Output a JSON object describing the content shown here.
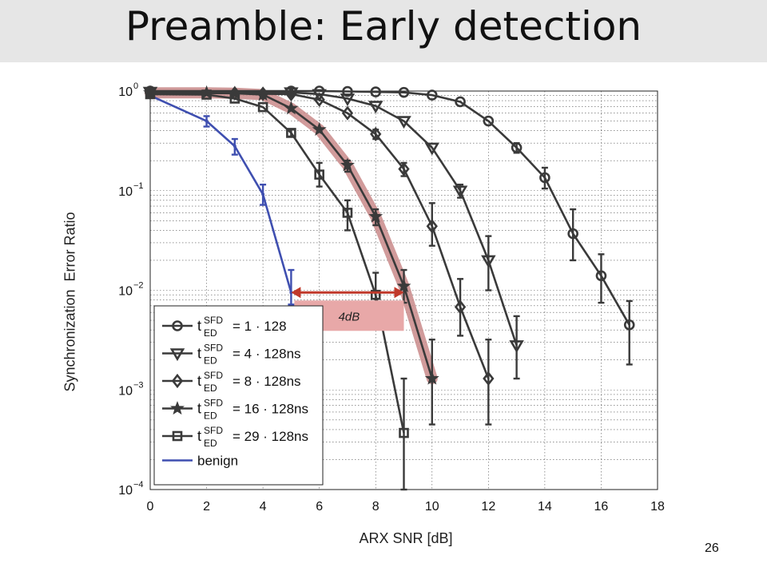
{
  "slide": {
    "title": "Preamble: Early detection",
    "page_number": "26"
  },
  "chart_data": {
    "type": "line",
    "xlabel": "ARX SNR [dB]",
    "ylabel": "Synchronization  Error Ratio",
    "yscale": "log",
    "xlim": [
      0,
      18
    ],
    "ylim": [
      0.0001,
      1
    ],
    "xticks": [
      0,
      2,
      4,
      6,
      8,
      10,
      12,
      14,
      16,
      18
    ],
    "ytick_exponents": [
      "0",
      "−1",
      "−2",
      "−3",
      "−4"
    ],
    "ytick_base": "10",
    "grid": true,
    "legend_placement": "lower-left",
    "series": [
      {
        "name": "benign",
        "marker": "dot",
        "color": "#3f4fb0",
        "x": [
          0,
          2,
          3,
          4,
          5
        ],
        "y": [
          0.9,
          0.5,
          0.28,
          0.092,
          0.0095
        ],
        "err_low": [
          null,
          0.44,
          0.23,
          0.072,
          0.0072
        ],
        "err_high": [
          null,
          0.56,
          0.33,
          0.115,
          0.016
        ]
      },
      {
        "name": "29",
        "marker": "square",
        "color": "#3a3a3a",
        "x": [
          0,
          2,
          3,
          4,
          5,
          6,
          7,
          8,
          9
        ],
        "y": [
          0.93,
          0.92,
          0.84,
          0.69,
          0.38,
          0.145,
          0.06,
          0.009,
          0.00037
        ],
        "err_low": [
          null,
          null,
          null,
          null,
          0.35,
          0.11,
          0.04,
          0.0045,
          0.0001
        ],
        "err_high": [
          null,
          null,
          null,
          null,
          0.41,
          0.19,
          0.08,
          0.015,
          0.0013
        ]
      },
      {
        "name": "16",
        "marker": "star",
        "color": "#3a3a3a",
        "highlight": "#c98a8a",
        "x": [
          0,
          2,
          3,
          4,
          5,
          6,
          7,
          8,
          9,
          10
        ],
        "y": [
          0.96,
          0.96,
          0.95,
          0.92,
          0.67,
          0.41,
          0.18,
          0.055,
          0.011,
          0.0013
        ],
        "err_low": [
          null,
          null,
          null,
          null,
          null,
          null,
          0.155,
          0.045,
          0.0075,
          0.00045
        ],
        "err_high": [
          null,
          null,
          null,
          null,
          null,
          null,
          0.2,
          0.065,
          0.016,
          0.0032
        ]
      },
      {
        "name": "8",
        "marker": "diamond",
        "color": "#3a3a3a",
        "x": [
          0,
          3,
          4,
          5,
          6,
          7,
          8,
          9,
          10,
          11,
          12
        ],
        "y": [
          0.96,
          0.95,
          0.94,
          0.93,
          0.82,
          0.6,
          0.37,
          0.165,
          0.044,
          0.0068,
          0.0013
        ],
        "err_low": [
          null,
          null,
          null,
          null,
          null,
          null,
          0.33,
          0.14,
          0.028,
          0.0035,
          0.00045
        ],
        "err_high": [
          null,
          null,
          null,
          null,
          null,
          null,
          0.41,
          0.19,
          0.075,
          0.013,
          0.0032
        ]
      },
      {
        "name": "4",
        "marker": "triangle",
        "color": "#3a3a3a",
        "x": [
          0,
          5,
          6,
          7,
          8,
          9,
          10,
          11,
          12,
          13
        ],
        "y": [
          0.98,
          0.97,
          0.93,
          0.84,
          0.71,
          0.5,
          0.27,
          0.1,
          0.02,
          0.0028
        ],
        "err_low": [
          null,
          null,
          null,
          null,
          null,
          null,
          null,
          0.085,
          0.01,
          0.0013
        ],
        "err_high": [
          null,
          null,
          null,
          null,
          null,
          null,
          null,
          0.115,
          0.035,
          0.0055
        ]
      },
      {
        "name": "1",
        "marker": "circle",
        "color": "#3a3a3a",
        "x": [
          0,
          5,
          6,
          7,
          8,
          9,
          10,
          11,
          12,
          13,
          14,
          15,
          16,
          17
        ],
        "y": [
          1,
          1,
          1,
          0.99,
          0.98,
          0.97,
          0.91,
          0.78,
          0.5,
          0.27,
          0.135,
          0.037,
          0.014,
          0.0045
        ],
        "err_low": [
          null,
          null,
          null,
          null,
          null,
          null,
          null,
          null,
          null,
          0.24,
          0.105,
          0.02,
          0.0075,
          0.0018
        ],
        "err_high": [
          null,
          null,
          null,
          null,
          null,
          null,
          null,
          null,
          null,
          0.3,
          0.17,
          0.065,
          0.023,
          0.0078
        ]
      }
    ],
    "legend": {
      "entries": [
        {
          "marker": "circle",
          "var": "t",
          "sup": "SFD",
          "sub": "ED",
          "text": "= 1 · 128"
        },
        {
          "marker": "triangle",
          "var": "t",
          "sup": "SFD",
          "sub": "ED",
          "text": "= 4 · 128ns"
        },
        {
          "marker": "diamond",
          "var": "t",
          "sup": "SFD",
          "sub": "ED",
          "text": "= 8 · 128ns"
        },
        {
          "marker": "star",
          "var": "t",
          "sup": "SFD",
          "sub": "ED",
          "text": "= 16 · 128ns"
        },
        {
          "marker": "square",
          "var": "t",
          "sup": "SFD",
          "sub": "ED",
          "text": "= 29 · 128ns"
        },
        {
          "marker": "line",
          "text": "benign"
        }
      ]
    },
    "annotation": {
      "text": "4dB",
      "x_from": 5,
      "x_to": 9,
      "y": 0.0095,
      "arrow_color": "#c0392b",
      "box_color": "#e8a8a8"
    }
  }
}
